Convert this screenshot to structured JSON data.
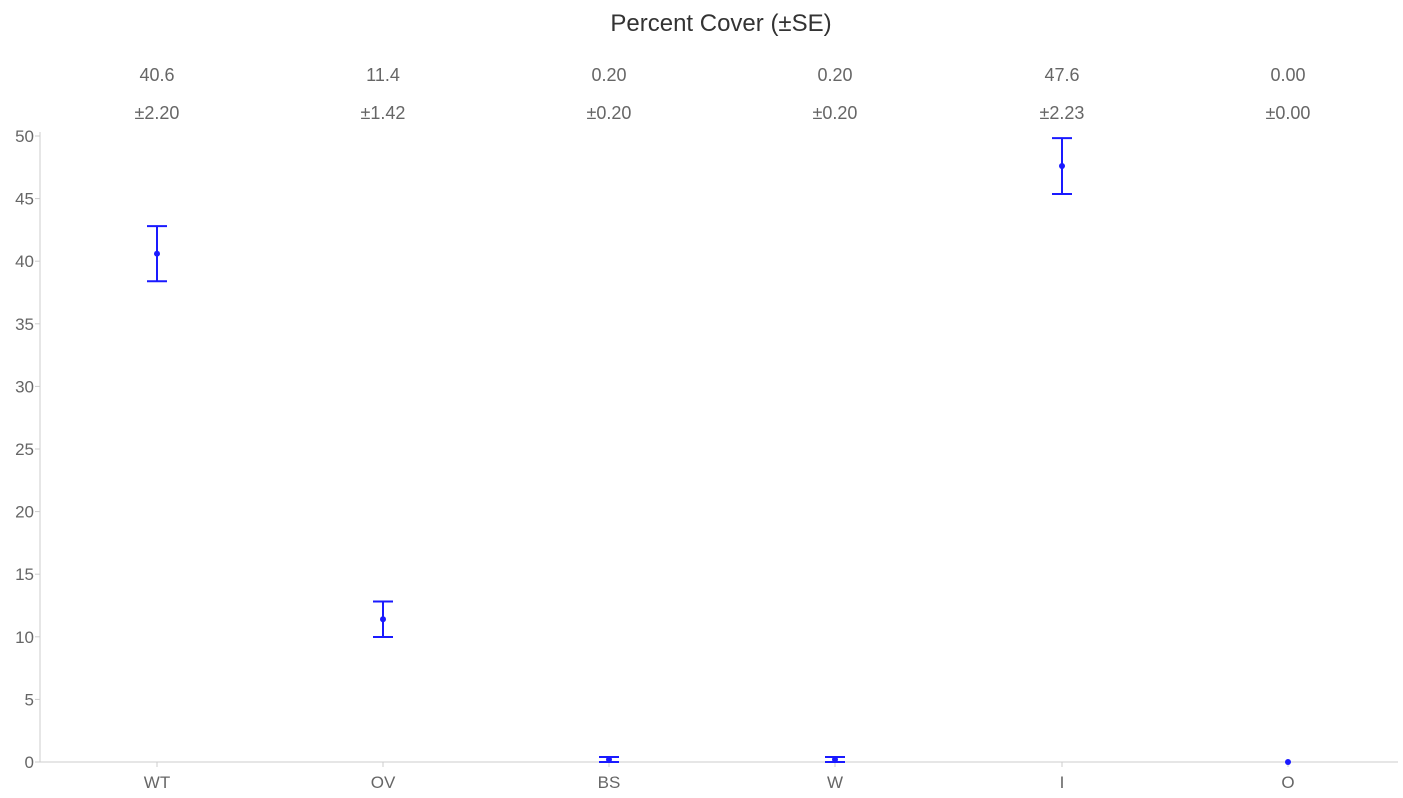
{
  "chart_data": {
    "type": "scatter",
    "title": "Percent Cover (±SE)",
    "xlabel": "",
    "ylabel": "",
    "categories": [
      "WT",
      "OV",
      "BS",
      "W",
      "I",
      "O"
    ],
    "values": [
      40.6,
      11.4,
      0.2,
      0.2,
      47.6,
      0.0
    ],
    "errors": [
      2.2,
      1.42,
      0.2,
      0.2,
      2.23,
      0.0
    ],
    "value_labels": [
      "40.6",
      "11.4",
      "0.20",
      "0.20",
      "47.6",
      "0.00"
    ],
    "error_labels": [
      "±2.20",
      "±1.42",
      "±0.20",
      "±0.20",
      "±2.23",
      "±0.00"
    ],
    "ylim": [
      0,
      50
    ],
    "yticks": [
      0,
      5,
      10,
      15,
      20,
      25,
      30,
      35,
      40,
      45,
      50
    ],
    "grid": false,
    "colors": {
      "marker": "#1a1aff",
      "axis": "#cccccc",
      "text": "#666666"
    }
  }
}
